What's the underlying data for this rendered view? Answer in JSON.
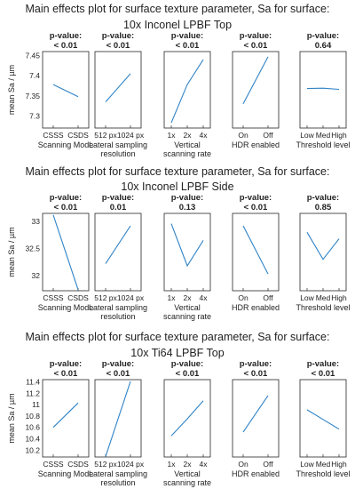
{
  "chart_data": [
    {
      "type": "line",
      "title": "Main effects plot for surface texture parameter, Sa for surface:",
      "subtitle": "10x Inconel LPBF Top",
      "ylabel": "mean Sa / µm",
      "ylim": [
        7.27,
        7.46
      ],
      "yticks": [
        "7.45",
        "7.4",
        "7.35",
        "7.3"
      ],
      "ytick_values": [
        7.45,
        7.4,
        7.35,
        7.3
      ],
      "panels": [
        {
          "pvalue": "< 0.01",
          "categories": [
            "CSSS",
            "CSDS"
          ],
          "values": [
            7.378,
            7.348
          ],
          "xlabel": [
            "Scanning Mode"
          ]
        },
        {
          "pvalue": "< 0.01",
          "categories": [
            "512 px",
            "1024 px"
          ],
          "values": [
            7.335,
            7.405
          ],
          "xlabel": [
            "Lateral sampling",
            "resolution"
          ]
        },
        {
          "pvalue": "< 0.01",
          "categories": [
            "1x",
            "2x",
            "4x"
          ],
          "values": [
            7.283,
            7.378,
            7.44
          ],
          "xlabel": [
            "Vertical",
            "scanning rate"
          ]
        },
        {
          "pvalue": "< 0.01",
          "categories": [
            "On",
            "Off"
          ],
          "values": [
            7.33,
            7.447
          ],
          "xlabel": [
            "HDR enabled"
          ]
        },
        {
          "pvalue": "0.64",
          "categories": [
            "Low",
            "Med",
            "High"
          ],
          "values": [
            7.368,
            7.369,
            7.366
          ],
          "xlabel": [
            "Threshold level"
          ]
        }
      ]
    },
    {
      "type": "line",
      "title": "Main effects plot for surface texture parameter, Sa for surface:",
      "subtitle": "10x Inconel LPBF Side",
      "ylabel": "mean Sa / µm",
      "ylim": [
        31.72,
        33.15
      ],
      "yticks": [
        "33",
        "32.5",
        "32"
      ],
      "ytick_values": [
        33,
        32.5,
        32
      ],
      "panels": [
        {
          "pvalue": "< 0.01",
          "categories": [
            "CSSS",
            "CSDS"
          ],
          "values": [
            33.12,
            31.74
          ],
          "xlabel": [
            "Scanning Mode"
          ]
        },
        {
          "pvalue": "0.01",
          "categories": [
            "512 px",
            "1024 px"
          ],
          "values": [
            32.22,
            32.92
          ],
          "xlabel": [
            "Lateral sampling",
            "resolution"
          ]
        },
        {
          "pvalue": "0.13",
          "categories": [
            "1x",
            "2x",
            "4x"
          ],
          "values": [
            32.96,
            32.18,
            32.65
          ],
          "xlabel": [
            "Vertical",
            "scanning rate"
          ]
        },
        {
          "pvalue": "< 0.01",
          "categories": [
            "On",
            "Off"
          ],
          "values": [
            32.92,
            32.03
          ],
          "xlabel": [
            "HDR enabled"
          ]
        },
        {
          "pvalue": "0.85",
          "categories": [
            "Low",
            "Med",
            "High"
          ],
          "values": [
            32.8,
            32.3,
            32.68
          ],
          "xlabel": [
            "Threshold level"
          ]
        }
      ]
    },
    {
      "type": "line",
      "title": "Main effects plot for surface texture parameter, Sa for surface:",
      "subtitle": "10x Ti64 LPBF Top",
      "ylabel": "mean Sa / µm",
      "ylim": [
        10.08,
        11.44
      ],
      "yticks": [
        "11.4",
        "11.2",
        "11",
        "10.8",
        "10.6",
        "10.4",
        "10.2"
      ],
      "ytick_values": [
        11.4,
        11.2,
        11.0,
        10.8,
        10.6,
        10.4,
        10.2
      ],
      "panels": [
        {
          "pvalue": "< 0.01",
          "categories": [
            "CSSS",
            "CSDS"
          ],
          "values": [
            10.6,
            11.03
          ],
          "xlabel": [
            "Scanning Mode"
          ]
        },
        {
          "pvalue": "< 0.01",
          "categories": [
            "512 px",
            "1024 px"
          ],
          "values": [
            10.09,
            11.41
          ],
          "xlabel": [
            "Lateral sampling",
            "resolution"
          ]
        },
        {
          "pvalue": "< 0.01",
          "categories": [
            "1x",
            "2x",
            "4x"
          ],
          "values": [
            10.45,
            10.75,
            11.07
          ],
          "xlabel": [
            "Vertical",
            "scanning rate"
          ]
        },
        {
          "pvalue": "< 0.01",
          "categories": [
            "On",
            "Off"
          ],
          "values": [
            10.52,
            11.16
          ],
          "xlabel": [
            "HDR enabled"
          ]
        },
        {
          "pvalue": "< 0.01",
          "categories": [
            "Low",
            "Med",
            "High"
          ],
          "values": [
            10.91,
            10.74,
            10.57
          ],
          "xlabel": [
            "Threshold level"
          ]
        }
      ]
    }
  ],
  "pvalue_prefix": "p-value:",
  "colors": {
    "line": "#2f83c7",
    "axis": "#262626",
    "text": "#222222"
  }
}
